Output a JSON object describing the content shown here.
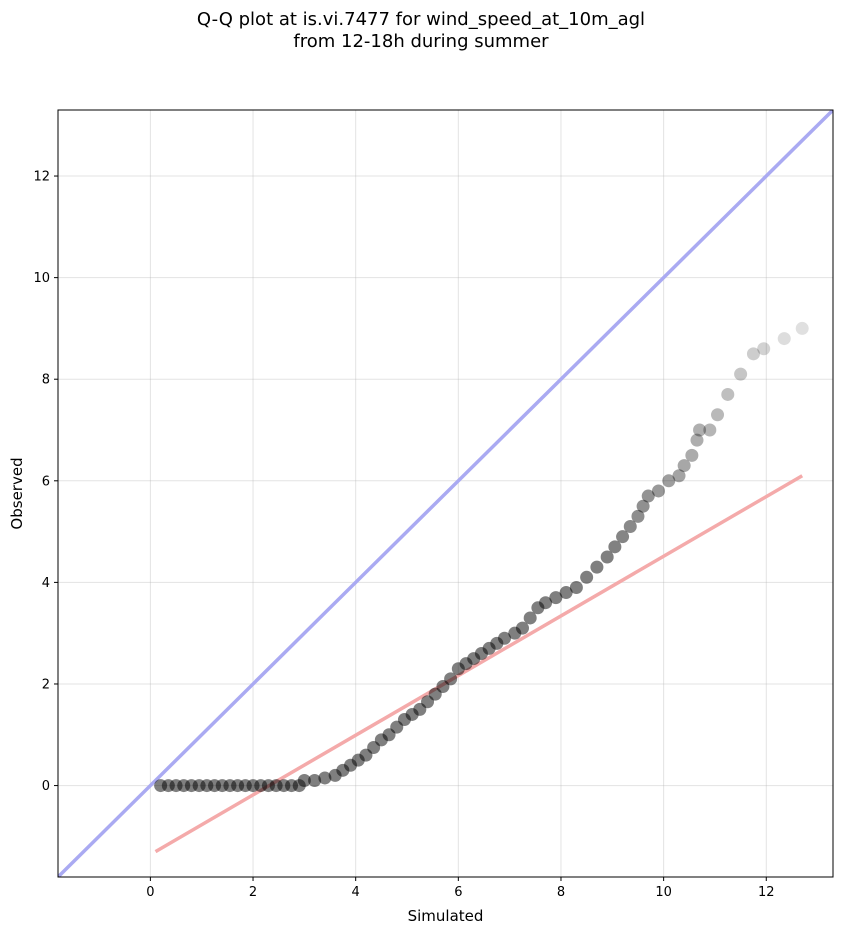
{
  "chart_data": {
    "type": "scatter",
    "title": [
      "Q-Q plot at is.vi.7477 for wind_speed_at_10m_agl",
      "from 12-18h during summer"
    ],
    "xlabel": "Simulated",
    "ylabel": "Observed",
    "xlim": [
      -1.8,
      13.3
    ],
    "ylim": [
      -1.8,
      13.3
    ],
    "xticks": [
      0,
      2,
      4,
      6,
      8,
      10,
      12
    ],
    "yticks": [
      0,
      2,
      4,
      6,
      8,
      10,
      12
    ],
    "grid": true,
    "legend": "none",
    "colors": {
      "points": "#000000",
      "identity_line": "#aaaaf2",
      "fit_line": "#f4aaaa"
    },
    "identity_line": {
      "x": [
        -1.8,
        13.3
      ],
      "y": [
        -1.8,
        13.3
      ]
    },
    "fit_line": {
      "x": [
        0.1,
        12.7
      ],
      "y": [
        -1.3,
        6.1
      ]
    },
    "points": [
      [
        0.2,
        0
      ],
      [
        0.35,
        0
      ],
      [
        0.5,
        0
      ],
      [
        0.65,
        0
      ],
      [
        0.8,
        0
      ],
      [
        0.95,
        0
      ],
      [
        1.1,
        0
      ],
      [
        1.25,
        0
      ],
      [
        1.4,
        0
      ],
      [
        1.55,
        0
      ],
      [
        1.7,
        0
      ],
      [
        1.85,
        0
      ],
      [
        2.0,
        0
      ],
      [
        2.15,
        0
      ],
      [
        2.3,
        0
      ],
      [
        2.45,
        0
      ],
      [
        2.6,
        0
      ],
      [
        2.75,
        0
      ],
      [
        2.9,
        0
      ],
      [
        3.0,
        0.1
      ],
      [
        3.2,
        0.1
      ],
      [
        3.4,
        0.15
      ],
      [
        3.6,
        0.2
      ],
      [
        3.75,
        0.3
      ],
      [
        3.9,
        0.4
      ],
      [
        4.05,
        0.5
      ],
      [
        4.2,
        0.6
      ],
      [
        4.35,
        0.75
      ],
      [
        4.5,
        0.9
      ],
      [
        4.65,
        1.0
      ],
      [
        4.8,
        1.15
      ],
      [
        4.95,
        1.3
      ],
      [
        5.1,
        1.4
      ],
      [
        5.25,
        1.5
      ],
      [
        5.4,
        1.65
      ],
      [
        5.55,
        1.8
      ],
      [
        5.7,
        1.95
      ],
      [
        5.85,
        2.1
      ],
      [
        6.0,
        2.3
      ],
      [
        6.15,
        2.4
      ],
      [
        6.3,
        2.5
      ],
      [
        6.45,
        2.6
      ],
      [
        6.6,
        2.7
      ],
      [
        6.75,
        2.8
      ],
      [
        6.9,
        2.9
      ],
      [
        7.1,
        3.0
      ],
      [
        7.25,
        3.1
      ],
      [
        7.4,
        3.3
      ],
      [
        7.55,
        3.5
      ],
      [
        7.7,
        3.6
      ],
      [
        7.9,
        3.7
      ],
      [
        8.1,
        3.8
      ],
      [
        8.3,
        3.9
      ],
      [
        8.5,
        4.1
      ],
      [
        8.7,
        4.3
      ],
      [
        8.9,
        4.5
      ],
      [
        9.05,
        4.7
      ],
      [
        9.2,
        4.9
      ],
      [
        9.35,
        5.1
      ],
      [
        9.5,
        5.3
      ],
      [
        9.6,
        5.5
      ],
      [
        9.7,
        5.7
      ],
      [
        9.9,
        5.8
      ],
      [
        10.1,
        6.0
      ],
      [
        10.3,
        6.1
      ],
      [
        10.4,
        6.3
      ],
      [
        10.55,
        6.5
      ],
      [
        10.65,
        6.8
      ],
      [
        10.7,
        7.0
      ],
      [
        10.9,
        7.0
      ],
      [
        11.05,
        7.3
      ],
      [
        11.25,
        7.7
      ],
      [
        11.5,
        8.1
      ],
      [
        11.75,
        8.5
      ],
      [
        11.95,
        8.6
      ],
      [
        12.35,
        8.8
      ],
      [
        12.7,
        9.0
      ]
    ]
  }
}
